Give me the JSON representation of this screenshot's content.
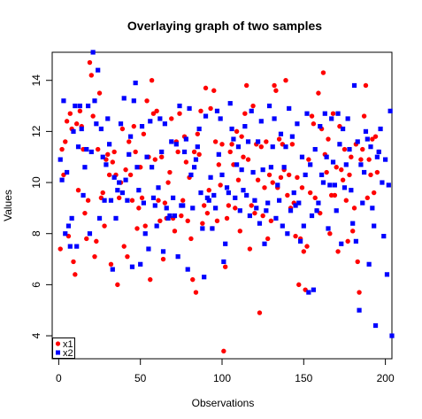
{
  "chart_data": {
    "type": "scatter",
    "title": "Overlaying graph of two samples",
    "xlabel": "Observations",
    "ylabel": "Values",
    "xlim": [
      -4,
      204
    ],
    "ylim": [
      3.1,
      15.1
    ],
    "x_ticks": [
      0,
      50,
      100,
      150,
      200
    ],
    "y_ticks": [
      4,
      6,
      8,
      10,
      12,
      14
    ],
    "grid": false,
    "legend": {
      "position": "bottom-left",
      "items": [
        {
          "label": "x1",
          "color": "#ff0000",
          "marker": "circle"
        },
        {
          "label": "x2",
          "color": "#0000ff",
          "marker": "square"
        }
      ]
    },
    "series": [
      {
        "name": "x1",
        "color": "#ff0000",
        "marker": "circle",
        "values": [
          7.4,
          11.3,
          10.3,
          11.6,
          12.4,
          7.9,
          12.7,
          12.1,
          6.9,
          6.4,
          12.3,
          9.7,
          12.8,
          12.2,
          11.3,
          8.8,
          7.8,
          9.3,
          14.7,
          14.2,
          12.6,
          7.1,
          7.7,
          11.3,
          13.5,
          9.4,
          9.6,
          8.3,
          10.9,
          11.1,
          10.3,
          6.8,
          10.8,
          11.2,
          10.3,
          6.0,
          9.4,
          10.0,
          12.1,
          7.5,
          10.5,
          7.1,
          11.6,
          10.3,
          9.3,
          12.2,
          11.2,
          8.2,
          9.0,
          10.6,
          9.4,
          11.9,
          8.3,
          13.2,
          11.0,
          6.2,
          14.0,
          12.7,
          10.9,
          12.8,
          9.3,
          8.5,
          11.0,
          7.0,
          9.2,
          8.6,
          10.0,
          10.4,
          12.5,
          8.6,
          8.1,
          11.6,
          11.2,
          12.7,
          8.7,
          9.3,
          11.8,
          10.8,
          8.5,
          10.2,
          7.8,
          6.2,
          11.2,
          5.7,
          11.9,
          11.1,
          12.8,
          8.4,
          9.1,
          13.7,
          8.8,
          9.7,
          12.9,
          8.2,
          13.6,
          11.6,
          8.5,
          10.7,
          9.9,
          11.5,
          3.4,
          6.7,
          8.6,
          9.1,
          11.2,
          11.5,
          10.7,
          9.0,
          12.0,
          10.1,
          8.1,
          11.8,
          11.0,
          12.7,
          13.8,
          10.9,
          7.4,
          9.1,
          13.0,
          8.8,
          11.5,
          10.1,
          4.9,
          11.4,
          8.7,
          9.8,
          11.6,
          7.8,
          10.3,
          8.5,
          10.0,
          13.8,
          13.6,
          9.8,
          11.7,
          10.2,
          11.5,
          10.5,
          14.0,
          9.5,
          10.3,
          9.0,
          11.5,
          9.2,
          7.9,
          10.2,
          6.0,
          7.8,
          9.8,
          7.3,
          5.8,
          7.5,
          10.9,
          9.6,
          12.6,
          12.3,
          9.4,
          8.9,
          13.5,
          8.8,
          12.1,
          14.3,
          11.1,
          10.4,
          11.7,
          8.0,
          9.5,
          12.7,
          9.5,
          10.6,
          7.3,
          12.2,
          10.5,
          10.1,
          11.3,
          9.3,
          7.7,
          10.3,
          11.0,
          8.1,
          9.0,
          11.5,
          6.9,
          5.7,
          10.9,
          11.3,
          12.6,
          13.8,
          9.4,
          10.9,
          10.3,
          11.7,
          9.6,
          11.8,
          10.4,
          11.2
        ]
      },
      {
        "name": "x2",
        "color": "#0000ff",
        "marker": "square",
        "values": [
          10.9,
          10.1,
          13.2,
          8.0,
          10.4,
          8.3,
          7.5,
          8.6,
          12.0,
          13.0,
          7.5,
          11.4,
          13.0,
          12.1,
          9.5,
          10.6,
          11.3,
          13.0,
          8.0,
          11.2,
          15.1,
          13.2,
          12.3,
          14.4,
          8.6,
          12.1,
          11.0,
          9.3,
          10.7,
          12.5,
          11.5,
          9.3,
          6.6,
          10.2,
          8.6,
          9.7,
          10.0,
          12.3,
          9.6,
          13.3,
          10.1,
          9.3,
          11.1,
          11.8,
          6.7,
          13.2,
          13.9,
          10.6,
          9.7,
          6.8,
          12.2,
          9.2,
          8.0,
          11.0,
          7.4,
          12.4,
          10.6,
          9.4,
          9.1,
          8.3,
          9.8,
          12.5,
          11.2,
          7.3,
          12.3,
          9.0,
          8.6,
          8.7,
          11.6,
          9.4,
          8.7,
          11.5,
          7.1,
          13.0,
          9.1,
          9.1,
          11.2,
          11.7,
          6.6,
          12.9,
          10.3,
          9.0,
          10.6,
          10.9,
          11.4,
          12.1,
          9.6,
          8.2,
          6.3,
          12.6,
          9.4,
          9.3,
          10.2,
          8.2,
          9.5,
          9.0,
          12.8,
          11.1,
          12.5,
          10.3,
          6.9,
          7.6,
          9.8,
          9.6,
          13.1,
          12.1,
          11.7,
          9.4,
          10.7,
          11.4,
          8.9,
          10.5,
          9.7,
          12.2,
          9.5,
          11.6,
          8.7,
          12.8,
          10.4,
          9.3,
          9.0,
          11.6,
          8.4,
          12.4,
          10.5,
          7.6,
          8.9,
          9.2,
          13.0,
          10.6,
          11.4,
          12.5,
          8.6,
          9.9,
          9.3,
          11.9,
          8.3,
          10.6,
          11.4,
          8.0,
          12.9,
          8.9,
          11.8,
          9.6,
          9.1,
          12.3,
          9.2,
          7.7,
          11.0,
          8.3,
          10.3,
          12.7,
          5.7,
          10.7,
          8.7,
          5.8,
          11.3,
          8.9,
          9.2,
          12.2,
          10.3,
          10.0,
          12.7,
          11.0,
          8.2,
          9.9,
          12.5,
          10.8,
          9.9,
          8.9,
          12.7,
          11.5,
          7.6,
          12.1,
          9.8,
          10.7,
          12.5,
          11.3,
          9.7,
          8.4,
          13.8,
          7.7,
          11.6,
          5.0,
          10.7,
          9.2,
          10.4,
          12.0,
          11.7,
          6.8,
          11.4,
          9.0,
          8.3,
          4.4,
          11.0,
          11.2,
          12.1,
          10.0,
          7.9,
          10.9,
          6.4,
          9.9,
          12.8,
          4.0
        ]
      }
    ]
  }
}
